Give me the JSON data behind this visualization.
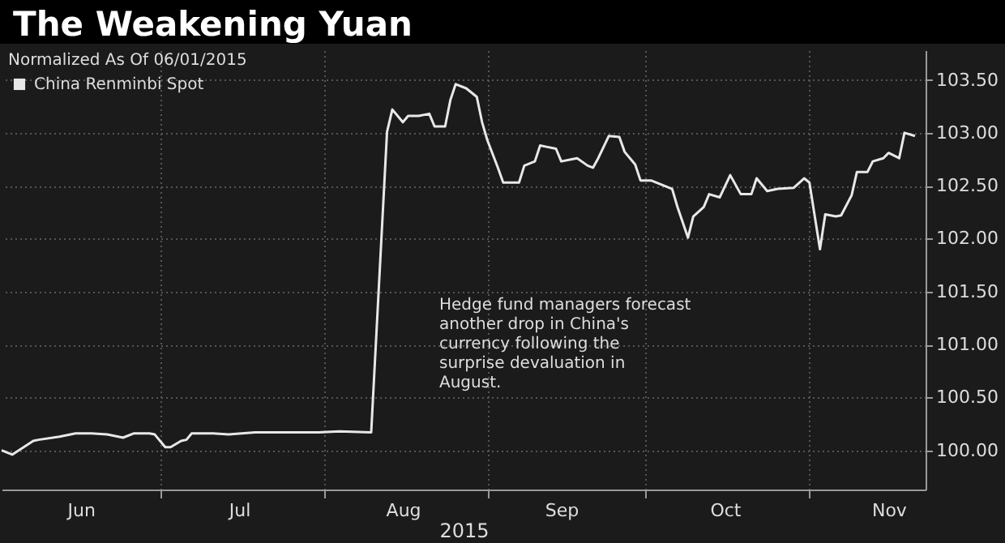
{
  "chart_data": {
    "type": "line",
    "title": "The Weakening Yuan",
    "subtitle": "Normalized As Of 06/01/2015",
    "xlabel": "2015",
    "annotations": [
      "Hedge fund managers forecast another drop in China's currency following the surprise devaluation in August."
    ],
    "x": [
      "2015-06-01",
      "2015-06-03",
      "2015-06-07",
      "2015-06-08",
      "2015-06-12",
      "2015-06-15",
      "2015-06-18",
      "2015-06-21",
      "2015-06-24",
      "2015-06-26",
      "2015-06-29",
      "2015-06-30",
      "2015-07-02",
      "2015-07-03",
      "2015-07-05",
      "2015-07-06",
      "2015-07-07",
      "2015-07-11",
      "2015-07-14",
      "2015-07-19",
      "2015-07-31",
      "2015-08-04",
      "2015-08-10",
      "2015-08-13",
      "2015-08-14",
      "2015-08-16",
      "2015-08-17",
      "2015-08-19",
      "2015-08-21",
      "2015-08-22",
      "2015-08-24",
      "2015-08-25",
      "2015-08-26",
      "2015-08-28",
      "2015-08-30",
      "2015-08-31",
      "2015-09-01",
      "2015-09-03",
      "2015-09-04",
      "2015-09-07",
      "2015-09-08",
      "2015-09-10",
      "2015-09-11",
      "2015-09-12",
      "2015-09-14",
      "2015-09-15",
      "2015-09-17",
      "2015-09-18",
      "2015-09-20",
      "2015-09-21",
      "2015-09-22",
      "2015-09-24",
      "2015-09-26",
      "2015-09-27",
      "2015-09-29",
      "2015-09-30",
      "2015-10-02",
      "2015-10-04",
      "2015-10-06",
      "2015-10-07",
      "2015-10-09",
      "2015-10-10",
      "2015-10-12",
      "2015-10-13",
      "2015-10-15",
      "2015-10-17",
      "2015-10-19",
      "2015-10-21",
      "2015-10-22",
      "2015-10-24",
      "2015-10-26",
      "2015-10-29",
      "2015-10-31",
      "2015-11-01",
      "2015-11-03",
      "2015-11-04",
      "2015-11-06",
      "2015-11-07",
      "2015-11-09",
      "2015-11-10",
      "2015-11-12",
      "2015-11-13",
      "2015-11-15",
      "2015-11-16",
      "2015-11-18",
      "2015-11-19",
      "2015-11-21"
    ],
    "series": [
      {
        "name": "China Renminbi Spot",
        "color": "#e8e8e8",
        "values": [
          100.0,
          99.96,
          100.09,
          100.1,
          100.13,
          100.16,
          100.16,
          100.15,
          100.12,
          100.16,
          100.16,
          100.15,
          100.03,
          100.03,
          100.09,
          100.1,
          100.16,
          100.16,
          100.15,
          100.17,
          100.17,
          100.18,
          100.17,
          103.01,
          103.22,
          103.1,
          103.16,
          103.16,
          103.18,
          103.06,
          103.06,
          103.31,
          103.46,
          103.42,
          103.34,
          103.1,
          102.93,
          102.67,
          102.53,
          102.53,
          102.69,
          102.73,
          102.88,
          102.87,
          102.85,
          102.73,
          102.75,
          102.76,
          102.69,
          102.67,
          102.76,
          102.97,
          102.96,
          102.82,
          102.7,
          102.55,
          102.55,
          102.51,
          102.47,
          102.3,
          102.01,
          102.21,
          102.3,
          102.42,
          102.39,
          102.6,
          102.42,
          102.42,
          102.57,
          102.45,
          102.47,
          102.48,
          102.57,
          102.53,
          101.9,
          102.23,
          102.21,
          102.22,
          102.41,
          102.63,
          102.63,
          102.73,
          102.76,
          102.81,
          102.76,
          103.0,
          102.97
        ]
      }
    ],
    "xlim": [
      "2015-06-01",
      "2015-11-23"
    ],
    "xticks": [
      {
        "value": "2015-06-16",
        "label": "Jun"
      },
      {
        "value": "2015-07-01",
        "label": null
      },
      {
        "value": "2015-07-16",
        "label": "Jul"
      },
      {
        "value": "2015-08-01",
        "label": null
      },
      {
        "value": "2015-08-16",
        "label": "Aug"
      },
      {
        "value": "2015-09-01",
        "label": null
      },
      {
        "value": "2015-09-15",
        "label": "Sep"
      },
      {
        "value": "2015-10-01",
        "label": null
      },
      {
        "value": "2015-10-16",
        "label": "Oct"
      },
      {
        "value": "2015-11-01",
        "label": null
      },
      {
        "value": "2015-11-16",
        "label": "Nov"
      }
    ],
    "ylim": [
      99.63,
      103.78
    ],
    "yticks": [
      {
        "value": 100,
        "label": "100.00"
      },
      {
        "value": 100.5,
        "label": "100.50"
      },
      {
        "value": 101,
        "label": "101.00"
      },
      {
        "value": 101.5,
        "label": "101.50"
      },
      {
        "value": 102,
        "label": "102.00"
      },
      {
        "value": 102.5,
        "label": "102.50"
      },
      {
        "value": 103,
        "label": "103.00"
      },
      {
        "value": 103.5,
        "label": "103.50"
      }
    ],
    "grid": true,
    "legend": "top left",
    "marker": "none",
    "line_style": "solid"
  }
}
